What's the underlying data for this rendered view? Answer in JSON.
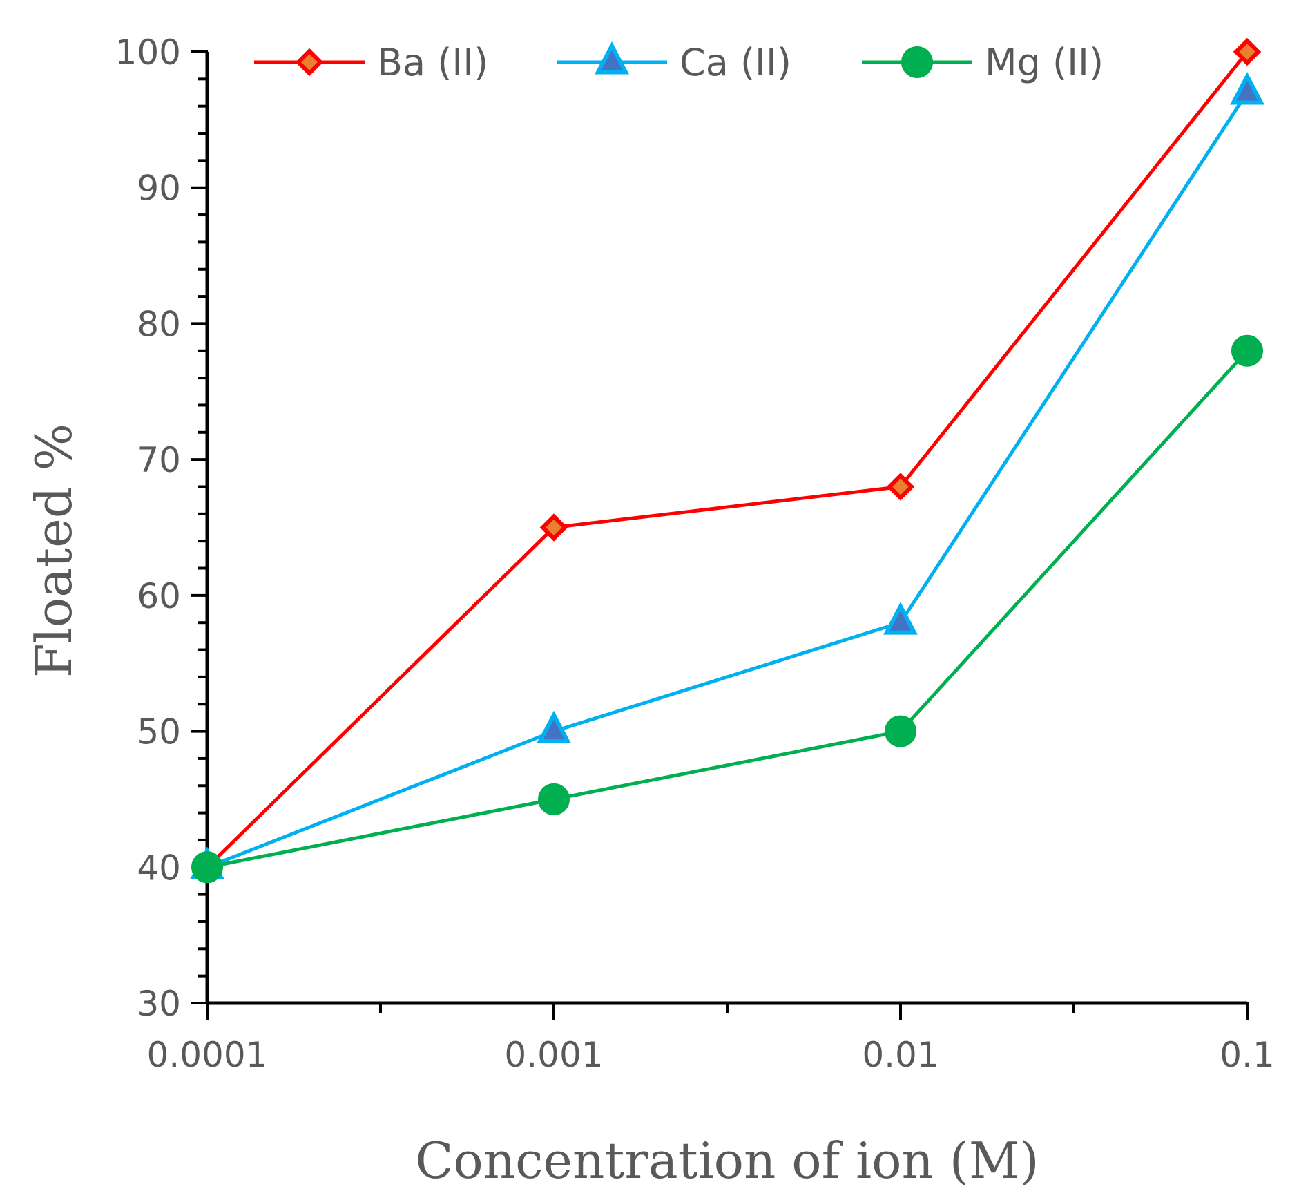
{
  "chart_data": {
    "type": "line",
    "x_scale": "log",
    "x": [
      0.0001,
      0.001,
      0.01,
      0.1
    ],
    "x_tick_labels": [
      "0.0001",
      "0.001",
      "0.01",
      "0.1"
    ],
    "xlabel": "Concentration of ion (M)",
    "ylabel": "Floated %",
    "ylim": [
      30,
      100
    ],
    "y_major_step": 10,
    "y_minor_step": 2,
    "y_tick_labels": [
      "30",
      "40",
      "50",
      "60",
      "70",
      "80",
      "90",
      "100"
    ],
    "legend_position": "top",
    "grid": false,
    "series": [
      {
        "name": "Ba (II)",
        "values": [
          40,
          65,
          68,
          100
        ],
        "color": "#ff0000",
        "marker": "diamond",
        "marker_fill": "#ed7d31"
      },
      {
        "name": "Ca (II)",
        "values": [
          40,
          50,
          58,
          97
        ],
        "color": "#00b0f0",
        "marker": "triangle",
        "marker_fill": "#4472c4"
      },
      {
        "name": "Mg (II)",
        "values": [
          40,
          45,
          50,
          78
        ],
        "color": "#00b050",
        "marker": "circle",
        "marker_fill": "#00b050"
      }
    ]
  }
}
